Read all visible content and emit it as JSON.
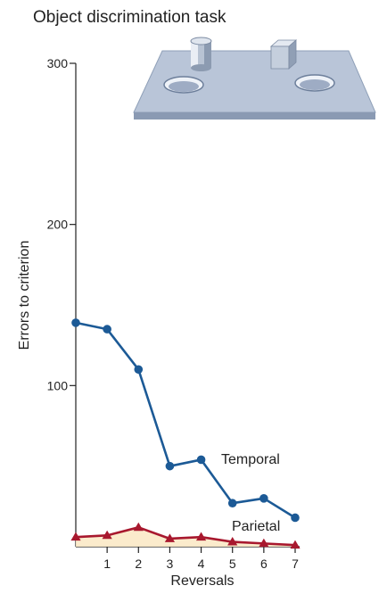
{
  "chart_data": {
    "type": "line",
    "title": "Object discrimination task",
    "xlabel": "Reversals",
    "ylabel": "Errors to criterion",
    "x": [
      0,
      1,
      2,
      3,
      4,
      5,
      6,
      7
    ],
    "x_tick_labels": [
      "1",
      "2",
      "3",
      "4",
      "5",
      "6",
      "7"
    ],
    "y_tick_labels": [
      "100",
      "200",
      "300"
    ],
    "xlim": [
      0,
      7
    ],
    "ylim": [
      0,
      300
    ],
    "grid": false,
    "series": [
      {
        "name": "Temporal",
        "color": "#1c5a96",
        "marker": "circle",
        "values": [
          139,
          135,
          110,
          50,
          54,
          27,
          30,
          18
        ]
      },
      {
        "name": "Parietal",
        "color": "#a8182e",
        "marker": "triangle",
        "values": [
          6,
          7,
          12,
          5,
          6,
          3,
          2,
          1
        ]
      }
    ],
    "illustration": {
      "board_color": "#b7c3d6",
      "board_edge_color": "#8fa0b8",
      "objects": [
        "cylinder-icon",
        "cube-icon"
      ]
    }
  }
}
